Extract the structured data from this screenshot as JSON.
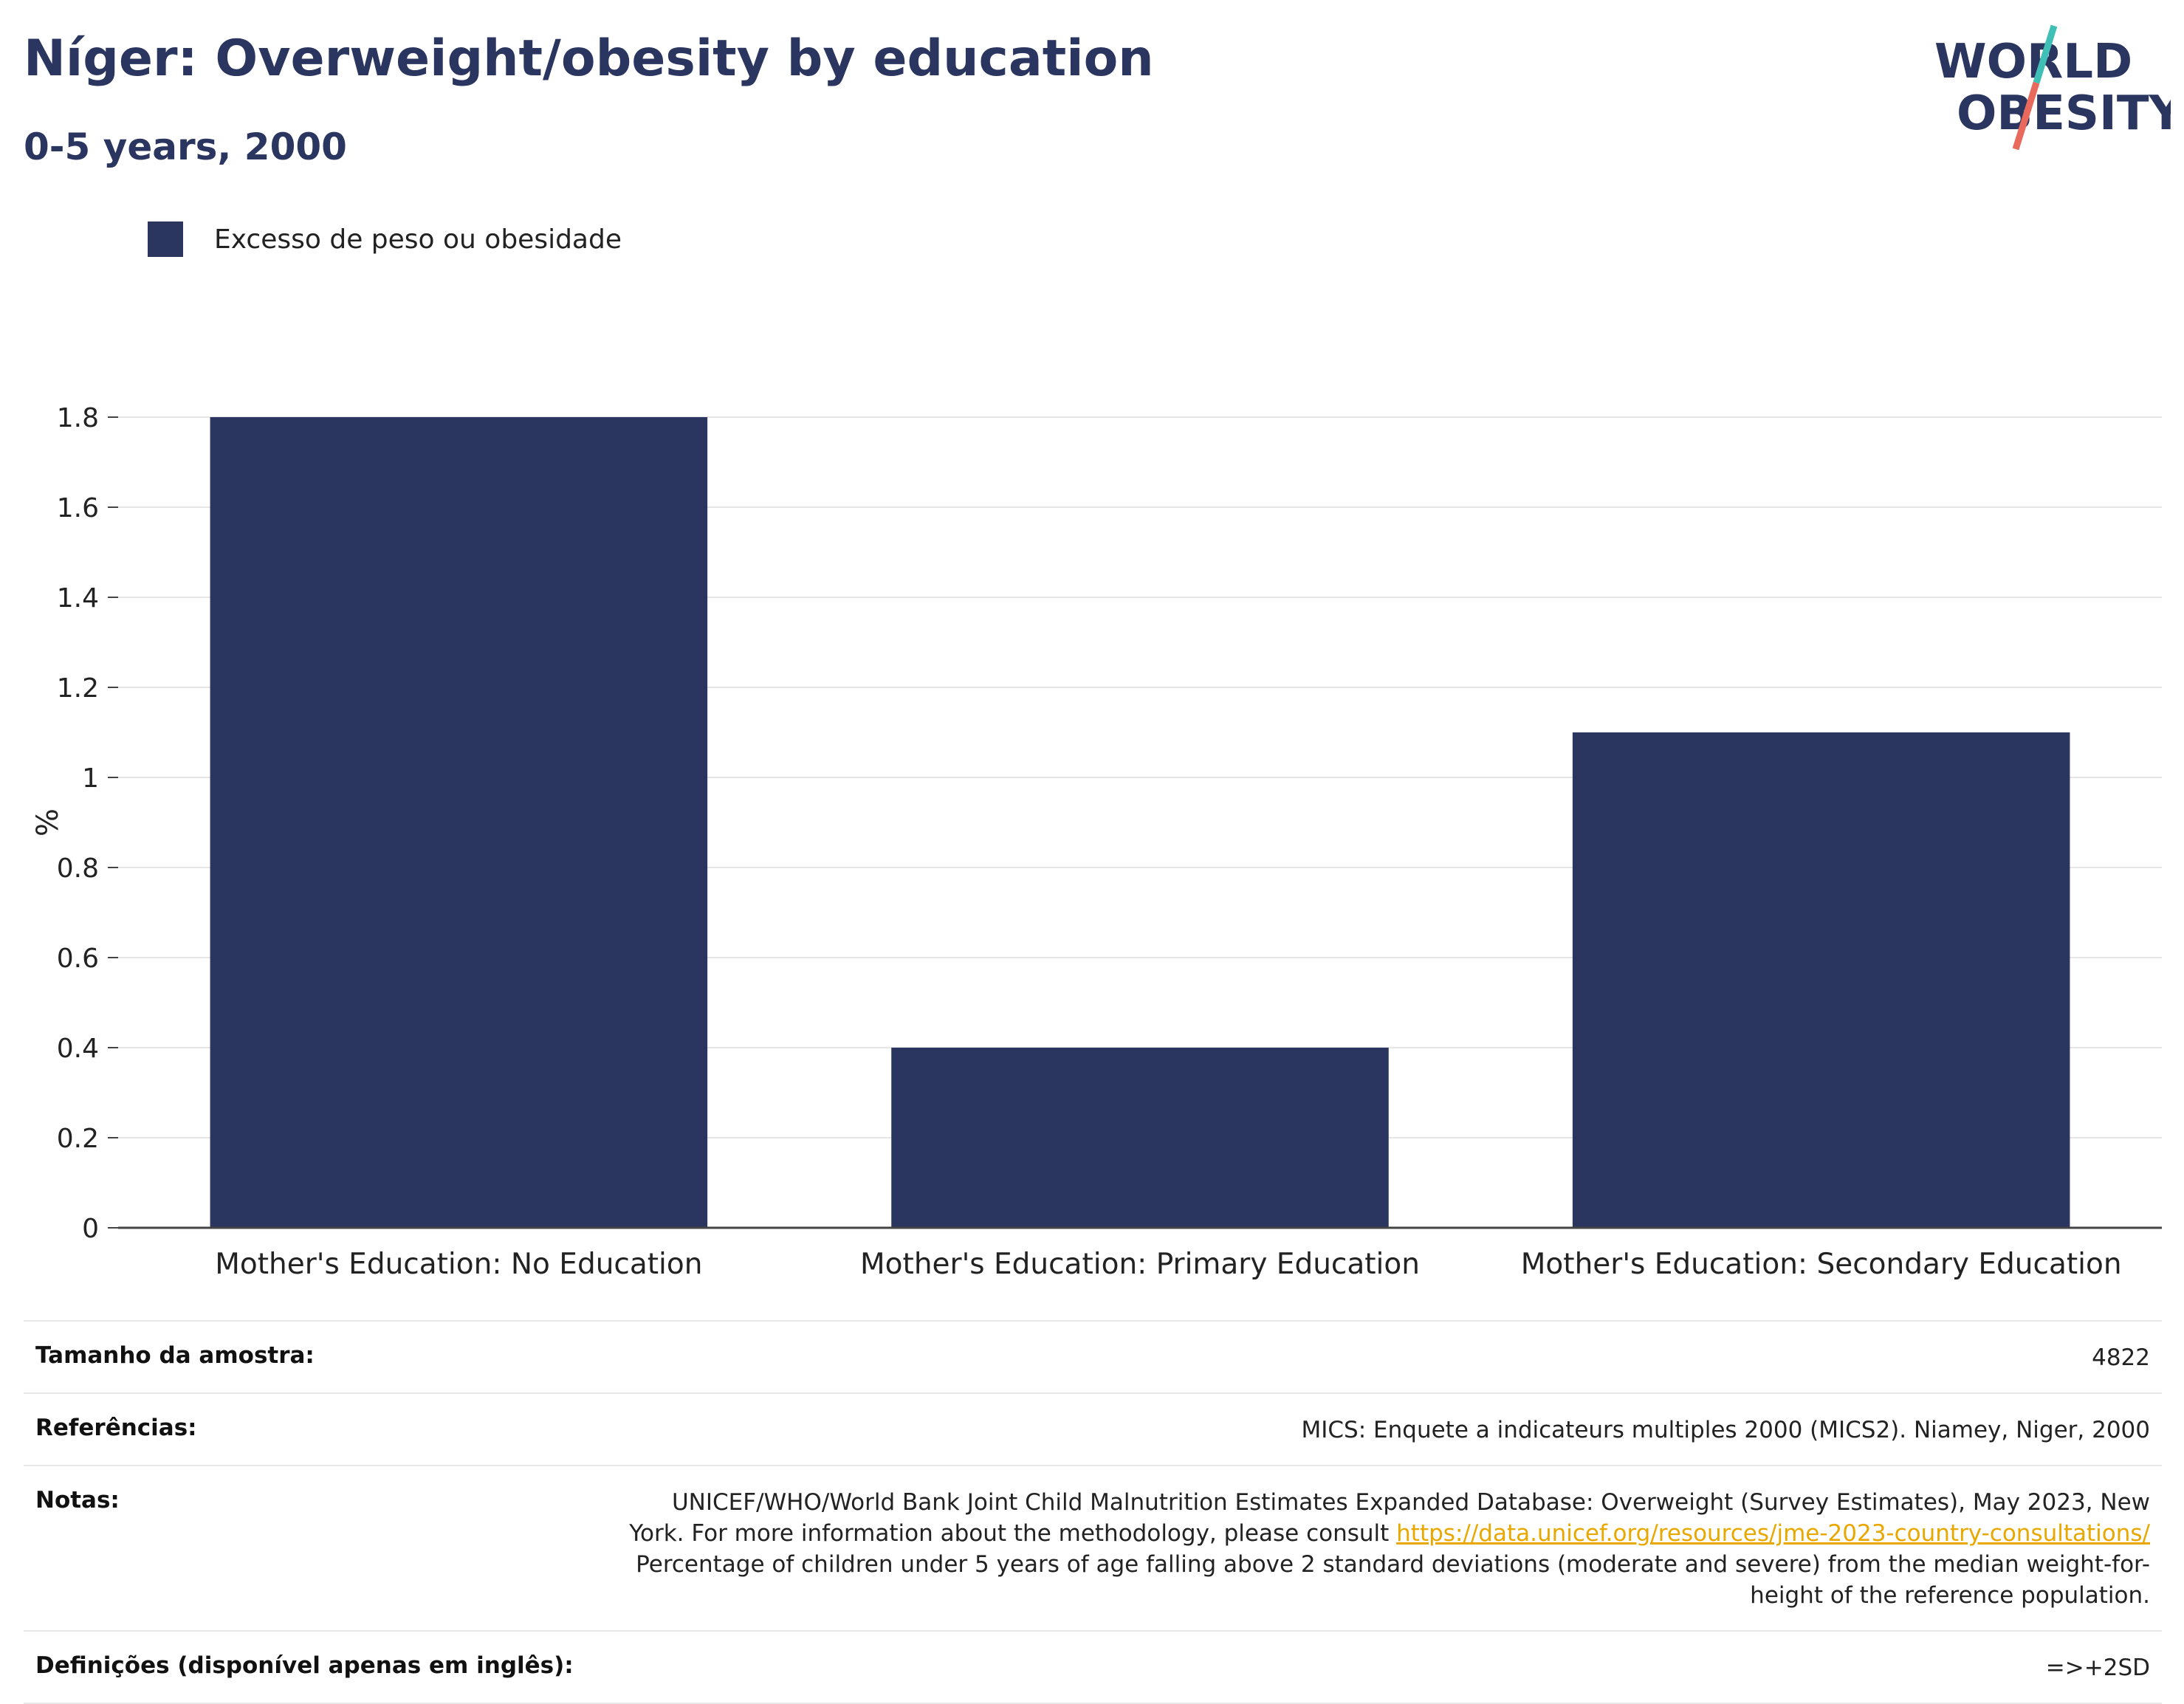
{
  "header": {
    "title": "Níger: Overweight/obesity by education",
    "subtitle": "0-5 years, 2000"
  },
  "logo": {
    "line1": "WORLD",
    "line2": "OBESITY",
    "colors": {
      "text": "#2a3560",
      "accent_teal": "#3fbfb5",
      "accent_red": "#e96a5c"
    }
  },
  "chart_data": {
    "type": "bar",
    "categories": [
      "Mother's Education: No Education",
      "Mother's Education: Primary Education",
      "Mother's Education: Secondary Education"
    ],
    "series": [
      {
        "name": "Excesso de peso ou obesidade",
        "values": [
          1.8,
          0.4,
          1.1
        ],
        "color": "#2a3660"
      }
    ],
    "ylabel": "%",
    "ylim": [
      0,
      1.8
    ],
    "yticks": [
      0,
      0.2,
      0.4,
      0.6,
      0.8,
      1,
      1.2,
      1.4,
      1.6,
      1.8
    ],
    "ytick_labels": [
      "0",
      "0.2",
      "0.4",
      "0.6",
      "0.8",
      "1",
      "1.2",
      "1.4",
      "1.6",
      "1.8"
    ],
    "grid": true,
    "legend_position": "top-left"
  },
  "info": {
    "sample_size_label": "Tamanho da amostra:",
    "sample_size_value": "4822",
    "references_label": "Referências:",
    "references_value": "MICS: Enquete a indicateurs multiples 2000 (MICS2). Niamey, Niger, 2000",
    "notes_label": "Notas:",
    "notes_line1": "UNICEF/WHO/World Bank Joint Child Malnutrition Estimates Expanded Database: Overweight (Survey Estimates), May 2023, New",
    "notes_line2_pre": "York. For more information about the methodology, please consult ",
    "notes_link": "https://data.unicef.org/resources/jme-2023-country-consultations/",
    "notes_line3": "Percentage of children under 5 years of age falling above 2 standard deviations (moderate and severe) from the median weight-for-",
    "notes_line4": "height of the reference population.",
    "definitions_label": "Definições (disponível apenas em inglês):",
    "definitions_value": "=>+2SD"
  }
}
